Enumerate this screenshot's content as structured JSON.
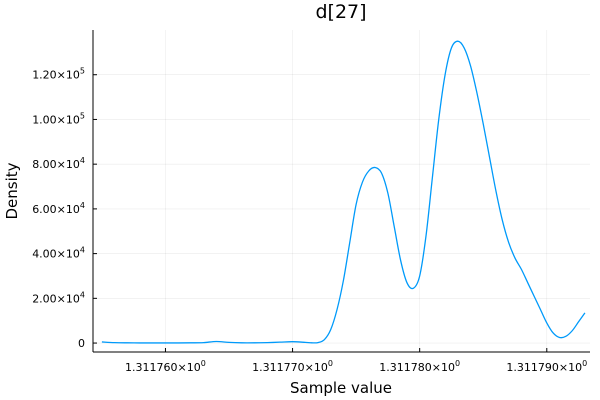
{
  "chart_data": {
    "type": "line",
    "title": "d[27]",
    "xlabel": "Sample value",
    "ylabel": "Density",
    "xlim": [
      1.3117543,
      1.3117934
    ],
    "ylim": [
      -4000,
      140000
    ],
    "grid": true,
    "legend": "none",
    "line_color": "#009AFA",
    "x_ticks": [
      {
        "value": 1.31176,
        "label": "1.311760×10",
        "exp": "0"
      },
      {
        "value": 1.31177,
        "label": "1.311770×10",
        "exp": "0"
      },
      {
        "value": 1.31178,
        "label": "1.311780×10",
        "exp": "0"
      },
      {
        "value": 1.31179,
        "label": "1.311790×10",
        "exp": "0"
      }
    ],
    "y_ticks": [
      {
        "value": 0,
        "label": "0",
        "exp": ""
      },
      {
        "value": 20000,
        "label": "2.00×10",
        "exp": "4"
      },
      {
        "value": 40000,
        "label": "4.00×10",
        "exp": "4"
      },
      {
        "value": 60000,
        "label": "6.00×10",
        "exp": "4"
      },
      {
        "value": 80000,
        "label": "8.00×10",
        "exp": "4"
      },
      {
        "value": 100000,
        "label": "1.00×10",
        "exp": "5"
      },
      {
        "value": 120000,
        "label": "1.20×10",
        "exp": "5"
      }
    ],
    "series": [
      {
        "x": [
          1.311755,
          1.311756,
          1.311757,
          1.311758,
          1.311759,
          1.31176,
          1.311761,
          1.311762,
          1.311763,
          1.311764,
          1.311765,
          1.311766,
          1.311767,
          1.311768,
          1.311769,
          1.31177,
          1.311771,
          1.3117715,
          1.311772,
          1.3117725,
          1.311773,
          1.3117735,
          1.311774,
          1.3117745,
          1.311775,
          1.3117755,
          1.311776,
          1.3117765,
          1.311777,
          1.3117775,
          1.311778,
          1.3117785,
          1.311779,
          1.3117795,
          1.31178,
          1.3117805,
          1.311781,
          1.3117815,
          1.311782,
          1.3117825,
          1.311783,
          1.3117835,
          1.311784,
          1.3117845,
          1.311785,
          1.3117855,
          1.311786,
          1.3117865,
          1.311787,
          1.3117875,
          1.311788,
          1.3117885,
          1.311789,
          1.3117895,
          1.31179,
          1.3117905,
          1.311791,
          1.3117915,
          1.311792,
          1.3117925,
          1.311793
        ],
        "y": [
          500,
          200,
          100,
          50,
          50,
          50,
          50,
          100,
          200,
          700,
          300,
          100,
          100,
          200,
          400,
          600,
          300,
          100,
          200,
          1500,
          6000,
          15000,
          28000,
          45000,
          62000,
          72000,
          77000,
          78500,
          76000,
          67000,
          52000,
          37000,
          27000,
          24500,
          30000,
          48000,
          74000,
          100000,
          120000,
          132000,
          135000,
          132000,
          124000,
          112000,
          98000,
          83000,
          68000,
          55000,
          45000,
          38000,
          33000,
          27000,
          21000,
          15000,
          9000,
          4500,
          2500,
          3000,
          5500,
          9500,
          13500
        ]
      }
    ]
  }
}
